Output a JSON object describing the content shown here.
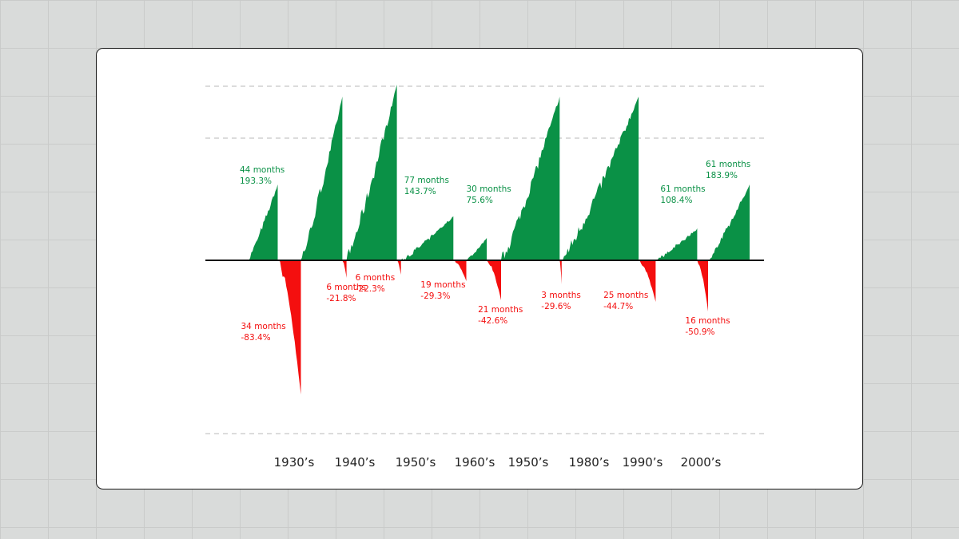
{
  "colors": {
    "gain": "#0a9146",
    "loss": "#f40f0f",
    "axis": "#111111",
    "grid": "#c8c8c8"
  },
  "chart_data": {
    "type": "area",
    "title": "",
    "xlabel": "",
    "ylabel": "",
    "grid": "dashed horizontal lines",
    "legend": "none",
    "x_ticks": [
      "1930’s",
      "1940’s",
      "1950’s",
      "1960’s",
      "1950’s",
      "1980’s",
      "1990’s",
      "2000’s"
    ],
    "ylim_percent": [
      -100,
      200
    ],
    "markets": [
      {
        "type": "bull",
        "months": 44,
        "label_months": "44 months",
        "label_change": "193.3%",
        "change_percent": 193.3
      },
      {
        "type": "bear",
        "months": 34,
        "label_months": "34 months",
        "label_change": "-83.4%",
        "change_percent": -83.4
      },
      {
        "type": "bull",
        "months": 61,
        "label_months": "",
        "label_change": "",
        "change_percent": 250
      },
      {
        "type": "bear",
        "months": 6,
        "label_months": "6 months",
        "label_change": "-21.8%",
        "change_percent": -21.8
      },
      {
        "type": "bull",
        "months": 74,
        "label_months": "",
        "label_change": "",
        "change_percent": 275
      },
      {
        "type": "bear",
        "months": 6,
        "label_months": "6 months",
        "label_change": "-22.3%",
        "change_percent": -22.3
      },
      {
        "type": "bull",
        "months": 77,
        "label_months": "77 months",
        "label_change": "143.7%",
        "change_percent": 143.7
      },
      {
        "type": "bear",
        "months": 19,
        "label_months": "19 months",
        "label_change": "-29.3%",
        "change_percent": -29.3
      },
      {
        "type": "bull",
        "months": 30,
        "label_months": "30 months",
        "label_change": "75.6%",
        "change_percent": 75.6
      },
      {
        "type": "bear",
        "months": 21,
        "label_months": "21 months",
        "label_change": "-42.6%",
        "change_percent": -42.6
      },
      {
        "type": "bull",
        "months": 86,
        "label_months": "",
        "label_change": "",
        "change_percent": 250
      },
      {
        "type": "bear",
        "months": 3,
        "label_months": "3 months",
        "label_change": "-29.6%",
        "change_percent": -29.6
      },
      {
        "type": "bull",
        "months": 113,
        "label_months": "",
        "label_change": "",
        "change_percent": 250
      },
      {
        "type": "bear",
        "months": 25,
        "label_months": "25 months",
        "label_change": "-44.7%",
        "change_percent": -44.7
      },
      {
        "type": "bull",
        "months": 61,
        "label_months": "61 months",
        "label_change": "108.4%",
        "change_percent": 108.4
      },
      {
        "type": "bear",
        "months": 16,
        "label_months": "16 months",
        "label_change": "-50.9%",
        "change_percent": -50.9
      },
      {
        "type": "bull",
        "months": 61,
        "label_months": "61 months",
        "label_change": "183.9%",
        "change_percent": 183.9
      }
    ]
  }
}
